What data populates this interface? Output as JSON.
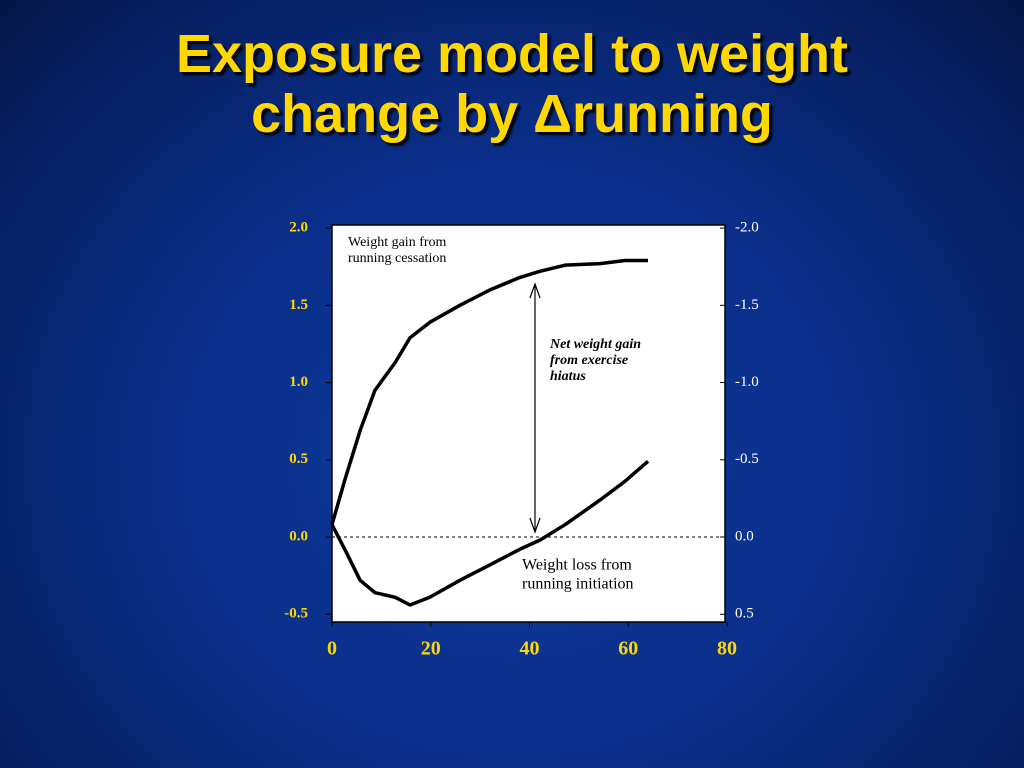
{
  "chart_data": {
    "type": "line",
    "title_lines": [
      "Exposure model to weight",
      "change by Δrunning"
    ],
    "x": [
      0,
      2.6,
      5.7,
      8.7,
      12.8,
      15.8,
      19.8,
      25.9,
      32,
      38,
      42.1,
      47.2,
      54.3,
      59.3,
      64
    ],
    "series": [
      {
        "color": "#000000",
        "values": [
          0.08,
          0.37,
          0.69,
          0.95,
          1.13,
          1.29,
          1.39,
          1.5,
          1.6,
          1.68,
          1.72,
          1.76,
          1.77,
          1.79,
          1.79
        ]
      },
      {
        "color": "#000000",
        "values": [
          0.08,
          -0.08,
          -0.28,
          -0.36,
          -0.39,
          -0.44,
          -0.39,
          -0.28,
          -0.18,
          -0.08,
          -0.02,
          0.08,
          0.24,
          0.36,
          0.49
        ]
      }
    ],
    "annotations": [
      {
        "lines": [
          "Weight gain from",
          "running cessation"
        ]
      },
      {
        "lines": [
          "Net weight gain",
          "from  exercise",
          "hiatus"
        ]
      },
      {
        "lines": [
          "Weight loss from",
          "running initiation"
        ]
      }
    ],
    "xlim": [
      0,
      80
    ],
    "xticks": [
      0,
      20,
      40,
      60,
      80
    ],
    "ylim": [
      -0.55,
      2.02
    ],
    "yticks": [
      {
        "value": 2,
        "label": "2.0"
      },
      {
        "value": 1.5,
        "label": "1.5"
      },
      {
        "value": 1,
        "label": "1.0"
      },
      {
        "value": 0.5,
        "label": "0.5"
      },
      {
        "value": 0,
        "label": "0.0"
      },
      {
        "value": -0.5,
        "label": "-0.5"
      }
    ],
    "y2lim": [
      0.55,
      -2.02
    ],
    "y2ticks": [
      {
        "value": -2,
        "label": "-2.0"
      },
      {
        "value": -1.5,
        "label": "-1.5"
      },
      {
        "value": -1,
        "label": "-1.0"
      },
      {
        "value": -0.5,
        "label": "-0.5"
      },
      {
        "value": 0,
        "label": "0.0"
      },
      {
        "value": 0.5,
        "label": "0.5"
      }
    ]
  }
}
